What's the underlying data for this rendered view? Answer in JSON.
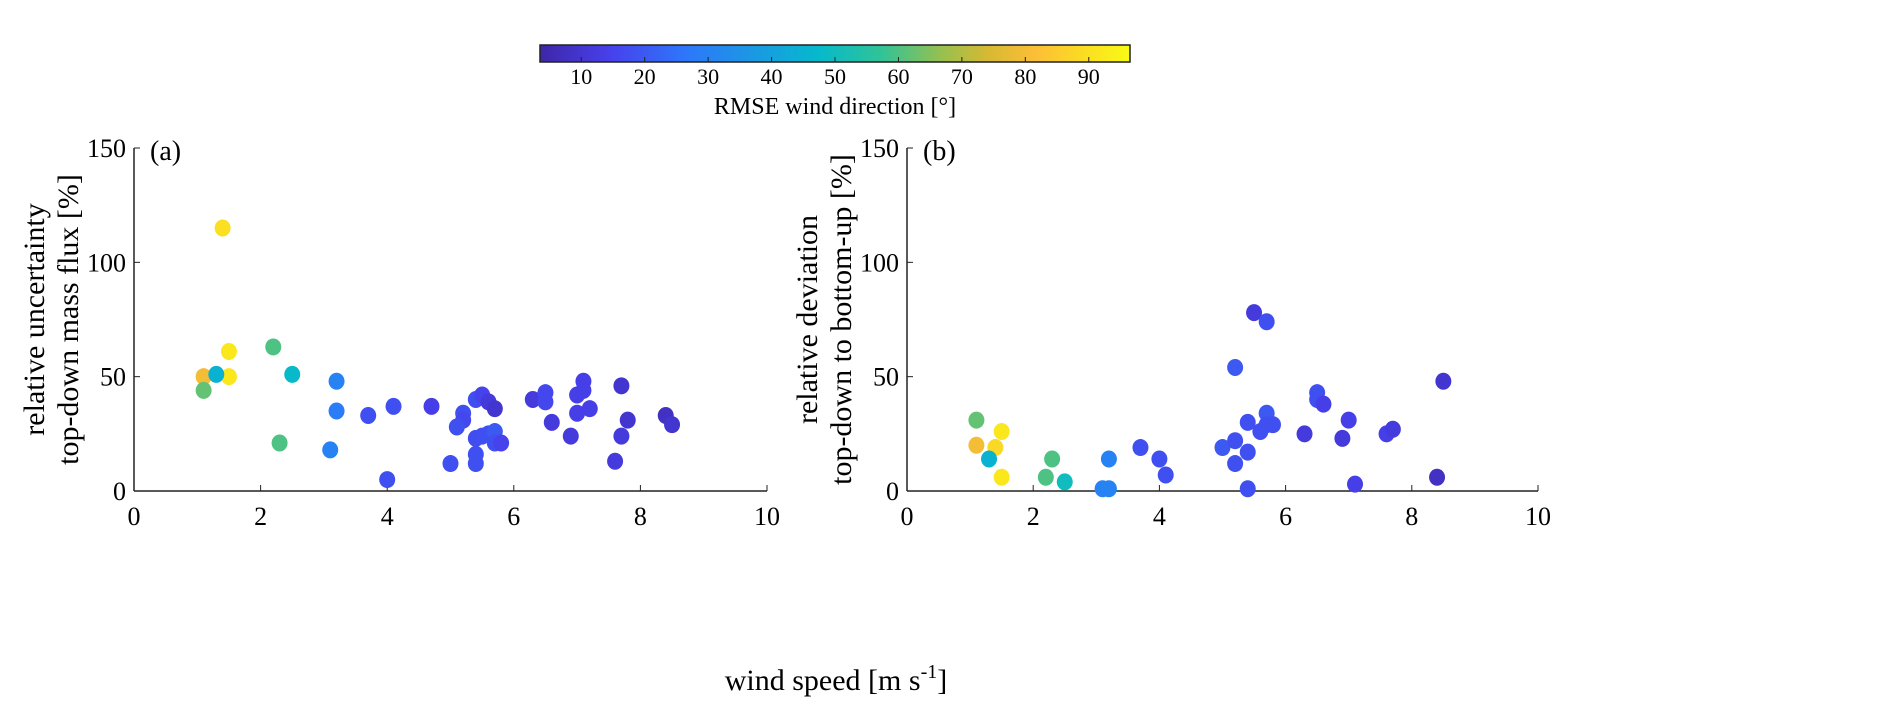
{
  "chart_data": [
    {
      "type": "scatter",
      "panel_label": "(a)",
      "ylabel_lines": [
        "relative uncertainty",
        "top-down mass flux [%]"
      ],
      "xlim": [
        0,
        10
      ],
      "ylim": [
        0,
        150
      ],
      "xticks": [
        0,
        2,
        4,
        6,
        8,
        10
      ],
      "yticks": [
        0,
        50,
        100,
        150
      ],
      "points": [
        [
          1.4,
          115,
          90
        ],
        [
          1.5,
          61,
          92
        ],
        [
          1.5,
          50,
          92
        ],
        [
          1.1,
          50,
          80
        ],
        [
          1.3,
          51,
          45
        ],
        [
          1.1,
          44,
          62
        ],
        [
          2.2,
          63,
          60
        ],
        [
          2.3,
          21,
          60
        ],
        [
          2.5,
          51,
          48
        ],
        [
          3.2,
          48,
          30
        ],
        [
          3.2,
          35,
          28
        ],
        [
          3.1,
          18,
          30
        ],
        [
          3.7,
          33,
          18
        ],
        [
          4.1,
          37,
          18
        ],
        [
          4.0,
          5,
          18
        ],
        [
          4.7,
          37,
          14
        ],
        [
          5.0,
          12,
          18
        ],
        [
          5.2,
          34,
          18
        ],
        [
          5.2,
          31,
          16
        ],
        [
          5.1,
          28,
          18
        ],
        [
          5.4,
          40,
          18
        ],
        [
          5.5,
          42,
          15
        ],
        [
          5.6,
          39,
          12
        ],
        [
          5.7,
          36,
          10
        ],
        [
          5.4,
          23,
          17
        ],
        [
          5.5,
          24,
          18
        ],
        [
          5.6,
          25,
          18
        ],
        [
          5.7,
          26,
          20
        ],
        [
          5.7,
          21,
          18
        ],
        [
          5.8,
          21,
          15
        ],
        [
          5.4,
          16,
          18
        ],
        [
          5.4,
          12,
          18
        ],
        [
          6.3,
          40,
          12
        ],
        [
          6.5,
          43,
          16
        ],
        [
          6.5,
          39,
          16
        ],
        [
          6.6,
          30,
          12
        ],
        [
          6.9,
          24,
          12
        ],
        [
          7.0,
          34,
          14
        ],
        [
          7.0,
          42,
          14
        ],
        [
          7.1,
          48,
          14
        ],
        [
          7.1,
          44,
          14
        ],
        [
          7.2,
          36,
          14
        ],
        [
          7.6,
          13,
          12
        ],
        [
          7.7,
          24,
          12
        ],
        [
          7.7,
          46,
          10
        ],
        [
          7.8,
          31,
          10
        ],
        [
          8.4,
          33,
          8
        ],
        [
          8.5,
          29,
          10
        ]
      ]
    },
    {
      "type": "scatter",
      "panel_label": "(b)",
      "ylabel_lines": [
        "relative deviation",
        "top-down to bottom-up [%]"
      ],
      "xlim": [
        0,
        10
      ],
      "ylim": [
        0,
        150
      ],
      "xticks": [
        0,
        2,
        4,
        6,
        8,
        10
      ],
      "yticks": [
        0,
        50,
        100,
        150
      ],
      "points": [
        [
          1.1,
          31,
          62
        ],
        [
          1.1,
          20,
          80
        ],
        [
          1.4,
          19,
          88
        ],
        [
          1.5,
          26,
          92
        ],
        [
          1.5,
          6,
          92
        ],
        [
          1.3,
          14,
          45
        ],
        [
          2.2,
          6,
          60
        ],
        [
          2.3,
          14,
          60
        ],
        [
          2.5,
          4,
          50
        ],
        [
          3.1,
          1,
          30
        ],
        [
          3.2,
          1,
          30
        ],
        [
          3.2,
          14,
          30
        ],
        [
          3.7,
          19,
          18
        ],
        [
          4.0,
          14,
          18
        ],
        [
          4.1,
          7,
          18
        ],
        [
          5.0,
          19,
          20
        ],
        [
          5.2,
          22,
          18
        ],
        [
          5.2,
          12,
          18
        ],
        [
          5.2,
          54,
          20
        ],
        [
          5.4,
          30,
          18
        ],
        [
          5.4,
          17,
          18
        ],
        [
          5.4,
          1,
          18
        ],
        [
          5.5,
          78,
          12
        ],
        [
          5.7,
          74,
          18
        ],
        [
          5.7,
          34,
          20
        ],
        [
          5.6,
          26,
          18
        ],
        [
          5.7,
          29,
          18
        ],
        [
          5.8,
          29,
          18
        ],
        [
          6.3,
          25,
          12
        ],
        [
          6.5,
          43,
          18
        ],
        [
          6.5,
          40,
          18
        ],
        [
          6.6,
          38,
          14
        ],
        [
          7.0,
          31,
          14
        ],
        [
          6.9,
          23,
          12
        ],
        [
          7.1,
          3,
          14
        ],
        [
          7.6,
          25,
          14
        ],
        [
          7.7,
          27,
          12
        ],
        [
          8.4,
          6,
          8
        ],
        [
          8.5,
          48,
          10
        ]
      ]
    }
  ],
  "xlabel": "wind speed [m s",
  "xlabel_sup": "-1",
  "xlabel_end": "]",
  "colorbar": {
    "label": "RMSE wind direction [°]",
    "range": [
      3.5,
      96.5
    ],
    "ticks": [
      10,
      20,
      30,
      40,
      50,
      60,
      70,
      80,
      90
    ],
    "colormap": "parula"
  }
}
